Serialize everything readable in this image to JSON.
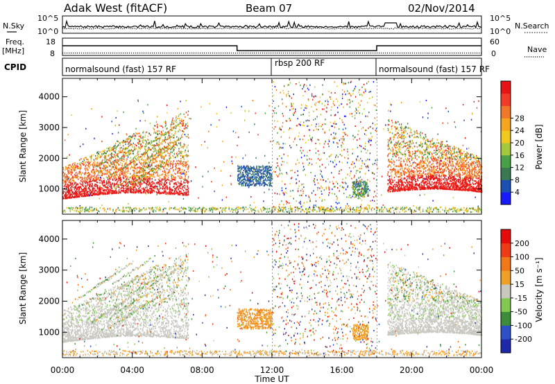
{
  "header": {
    "station": "Adak West (fitACF)",
    "beam": "Beam 07",
    "date": "02/Nov/2014"
  },
  "top_panels": {
    "nsky_label": "N.Sky",
    "nsky_ticks": [
      "10^5",
      "10^0"
    ],
    "nsearch_label": "N.Search",
    "nsearch_ticks": [
      "10^5",
      "10^0"
    ],
    "freq_label": "Freq.",
    "freq_unit": "[MHz]",
    "freq_ticks": [
      "18",
      "8"
    ],
    "nave_label": "Nave",
    "nave_ticks": [
      "60",
      "0"
    ],
    "cpid_label": "CPID",
    "cpid_segments": [
      {
        "label": "normalsound (fast) 157 RF",
        "start_h": 0,
        "end_h": 12
      },
      {
        "label": "rbsp 200 RF",
        "start_h": 12,
        "end_h": 18
      },
      {
        "label": "normalsound (fast) 157 RF",
        "start_h": 18,
        "end_h": 24
      }
    ]
  },
  "chart_data": [
    {
      "type": "heatmap",
      "ylabel": "Slant Range [km]",
      "ylim": [
        180,
        4600
      ],
      "yticks": [
        1000,
        2000,
        3000,
        4000
      ],
      "xlim": [
        0,
        24
      ],
      "colorbar": {
        "label": "Power [dB]",
        "ticks": [
          "4",
          "8",
          "12",
          "16",
          "20",
          "24",
          "28"
        ],
        "colors": [
          "#1a1aff",
          "#1a50b0",
          "#3a7a52",
          "#4aa046",
          "#a6c83c",
          "#f0c81e",
          "#f5a51e",
          "#f07828",
          "#f03c28",
          "#e61414"
        ]
      }
    },
    {
      "type": "heatmap",
      "ylabel": "Slant Range [km]",
      "ylim": [
        180,
        4600
      ],
      "yticks": [
        1000,
        2000,
        3000,
        4000
      ],
      "xlim": [
        0,
        24
      ],
      "xlabel": "Time UT",
      "xticks": [
        "00:00",
        "04:00",
        "08:00",
        "12:00",
        "16:00",
        "20:00",
        "00:00"
      ],
      "colorbar": {
        "label": "Velocity [m s⁻¹]",
        "ticks": [
          "200",
          "100",
          "50",
          "15",
          "-15",
          "-50",
          "-100",
          "-200"
        ],
        "colors": [
          "#1e28aa",
          "#2d50c8",
          "#3c8c3c",
          "#82c850",
          "#c8c8c0",
          "#f0a028",
          "#f07818",
          "#f03c14",
          "#e60a0a"
        ]
      }
    }
  ]
}
